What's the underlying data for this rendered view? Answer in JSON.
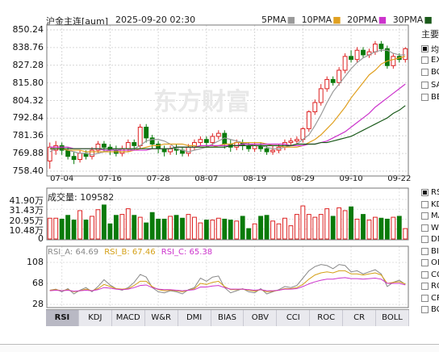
{
  "header": {
    "title": "沪金主连[aum]",
    "datetime": "2025-09-20 02:30",
    "ma_legend": [
      {
        "label": "5PMA",
        "color": "#9a9a9a"
      },
      {
        "label": "10PMA",
        "color": "#e0a020"
      },
      {
        "label": "20PMA",
        "color": "#cc33cc"
      },
      {
        "label": "30PMA",
        "color": "#1a5a1a"
      }
    ]
  },
  "watermark": "东方财富",
  "sidebar": {
    "title": "主要",
    "items": [
      {
        "label": "均",
        "checked": true
      },
      {
        "label": "EX",
        "checked": false
      },
      {
        "label": "BC",
        "checked": false
      },
      {
        "label": "SA",
        "checked": false
      },
      {
        "label": "BE",
        "checked": false
      }
    ],
    "indicator_items": [
      {
        "label": "RS",
        "checked": true
      },
      {
        "label": "KD",
        "checked": false
      },
      {
        "label": "MA",
        "checked": false
      },
      {
        "label": "W8",
        "checked": false
      },
      {
        "label": "DM",
        "checked": false
      },
      {
        "label": "BI",
        "checked": false
      },
      {
        "label": "OB",
        "checked": false
      },
      {
        "label": "CC",
        "checked": false
      },
      {
        "label": "RO",
        "checked": false
      },
      {
        "label": "CR",
        "checked": false
      },
      {
        "label": "BC",
        "checked": false
      }
    ]
  },
  "volume_title": "成交量: 109582",
  "rsi_legend": {
    "a": "RSI_A: 64.69",
    "b": "RSI_B: 67.46",
    "c": "RSI_C: 65.38",
    "a_color": "#888888",
    "b_color": "#d4a017",
    "c_color": "#cc33cc"
  },
  "tabs": [
    "RSI",
    "KDJ",
    "MACD",
    "W&R",
    "DMI",
    "BIAS",
    "OBV",
    "CCI",
    "ROC",
    "CR",
    "BOLL"
  ],
  "active_tab": "RSI",
  "chart_data": [
    {
      "type": "candlestick",
      "y_ticks": [
        "850.24",
        "838.76",
        "827.28",
        "815.80",
        "804.32",
        "792.84",
        "781.36",
        "769.88",
        "758.40"
      ],
      "ylim": [
        758.4,
        850.24
      ],
      "x_ticks": [
        "07-04",
        "07-16",
        "07-28",
        "08-07",
        "08-19",
        "08-29",
        "09-10",
        "09-22"
      ],
      "x_tick_index": [
        2,
        10,
        18,
        26,
        34,
        42,
        50,
        58
      ],
      "candles": [
        [
          765,
          774,
          760,
          777
        ],
        [
          772,
          775,
          769,
          778
        ],
        [
          775,
          772,
          769,
          777
        ],
        [
          772,
          768,
          766,
          774
        ],
        [
          768,
          766,
          763,
          771
        ],
        [
          766,
          770,
          764,
          772
        ],
        [
          770,
          768,
          766,
          772
        ],
        [
          768,
          772,
          766,
          774
        ],
        [
          772,
          776,
          770,
          778
        ],
        [
          776,
          774,
          771,
          778
        ],
        [
          774,
          772,
          769,
          776
        ],
        [
          772,
          770,
          768,
          775
        ],
        [
          770,
          773,
          768,
          775
        ],
        [
          773,
          777,
          771,
          779
        ],
        [
          777,
          775,
          772,
          779
        ],
        [
          775,
          787,
          773,
          789
        ],
        [
          787,
          780,
          777,
          789
        ],
        [
          780,
          776,
          773,
          782
        ],
        [
          776,
          773,
          770,
          778
        ],
        [
          773,
          771,
          768,
          775
        ],
        [
          771,
          773,
          769,
          775
        ],
        [
          773,
          772,
          769,
          776
        ],
        [
          772,
          770,
          768,
          774
        ],
        [
          770,
          774,
          768,
          776
        ],
        [
          774,
          777,
          772,
          779
        ],
        [
          777,
          779,
          775,
          781
        ],
        [
          779,
          777,
          774,
          781
        ],
        [
          777,
          781,
          775,
          783
        ],
        [
          781,
          783,
          779,
          785
        ],
        [
          783,
          776,
          773,
          785
        ],
        [
          776,
          774,
          771,
          779
        ],
        [
          774,
          777,
          772,
          779
        ],
        [
          777,
          775,
          772,
          779
        ],
        [
          775,
          773,
          771,
          777
        ],
        [
          773,
          775,
          771,
          777
        ],
        [
          775,
          773,
          771,
          777
        ],
        [
          773,
          771,
          769,
          775
        ],
        [
          771,
          772,
          769,
          775
        ],
        [
          772,
          774,
          770,
          776
        ],
        [
          774,
          777,
          772,
          779
        ],
        [
          777,
          778,
          775,
          780
        ],
        [
          778,
          779,
          776,
          781
        ],
        [
          779,
          786,
          777,
          787
        ],
        [
          786,
          797,
          784,
          798
        ],
        [
          797,
          803,
          795,
          805
        ],
        [
          803,
          812,
          801,
          815
        ],
        [
          812,
          818,
          810,
          820
        ],
        [
          818,
          816,
          814,
          820
        ],
        [
          816,
          824,
          814,
          826
        ],
        [
          824,
          833,
          822,
          835
        ],
        [
          833,
          831,
          829,
          837
        ],
        [
          831,
          837,
          829,
          839
        ],
        [
          837,
          834,
          832,
          839
        ],
        [
          834,
          836,
          832,
          838
        ],
        [
          836,
          841,
          834,
          843
        ],
        [
          841,
          838,
          836,
          843
        ],
        [
          838,
          827,
          825,
          840
        ],
        [
          827,
          833,
          825,
          835
        ],
        [
          833,
          831,
          829,
          835
        ],
        [
          831,
          838,
          829,
          839
        ]
      ],
      "ma_series": [
        {
          "name": "5PMA",
          "color": "#9a9a9a",
          "values": [
            771,
            773,
            773,
            772,
            771,
            770,
            770,
            769,
            770,
            771,
            772,
            773,
            772,
            772,
            773,
            775,
            778,
            779,
            779,
            778,
            776,
            773,
            772,
            771,
            772,
            773,
            774,
            776,
            778,
            780,
            779,
            778,
            777,
            776,
            775,
            775,
            774,
            773,
            773,
            774,
            775,
            776,
            779,
            782,
            788,
            795,
            803,
            810,
            815,
            820,
            825,
            829,
            832,
            834,
            836,
            837,
            837,
            835,
            834,
            834
          ]
        },
        {
          "name": "10PMA",
          "color": "#e0a020",
          "values": [
            773,
            773,
            773,
            772,
            772,
            772,
            771,
            771,
            771,
            771,
            771,
            771,
            771,
            771,
            772,
            773,
            774,
            775,
            775,
            776,
            776,
            776,
            776,
            775,
            775,
            774,
            774,
            774,
            775,
            776,
            776,
            777,
            777,
            777,
            777,
            777,
            776,
            775,
            775,
            774,
            774,
            774,
            775,
            777,
            779,
            782,
            786,
            790,
            795,
            800,
            806,
            811,
            816,
            821,
            824,
            828,
            830,
            831,
            832,
            833
          ]
        },
        {
          "name": "20PMA",
          "color": "#cc33cc",
          "values": [
            774,
            774,
            774,
            774,
            773,
            773,
            773,
            773,
            773,
            772,
            772,
            772,
            772,
            772,
            772,
            772,
            772,
            773,
            773,
            773,
            773,
            774,
            774,
            774,
            774,
            775,
            775,
            775,
            775,
            775,
            775,
            775,
            776,
            776,
            776,
            776,
            776,
            776,
            776,
            776,
            775,
            775,
            775,
            776,
            776,
            777,
            778,
            780,
            782,
            784,
            787,
            790,
            793,
            796,
            800,
            803,
            806,
            809,
            812,
            815
          ]
        },
        {
          "name": "30PMA",
          "color": "#1a5a1a",
          "values": [
            773,
            773,
            773,
            773,
            773,
            773,
            773,
            773,
            773,
            773,
            773,
            773,
            773,
            773,
            773,
            773,
            773,
            773,
            773,
            773,
            773,
            774,
            774,
            774,
            774,
            774,
            774,
            774,
            774,
            774,
            775,
            775,
            775,
            775,
            775,
            775,
            775,
            775,
            775,
            775,
            775,
            776,
            776,
            776,
            776,
            777,
            777,
            778,
            779,
            780,
            781,
            783,
            785,
            787,
            789,
            791,
            793,
            796,
            798,
            801
          ]
        }
      ]
    },
    {
      "type": "bar",
      "title": "成交量: 109582",
      "y_ticks": [
        "41.90万",
        "31.43万",
        "20.95万",
        "10.48万",
        "0"
      ],
      "ylim": [
        0,
        419000
      ],
      "values": [
        220000,
        220000,
        210000,
        250000,
        200000,
        300000,
        200000,
        240000,
        310000,
        360000,
        160000,
        250000,
        260000,
        320000,
        250000,
        230000,
        170000,
        280000,
        210000,
        210000,
        240000,
        250000,
        220000,
        260000,
        230000,
        170000,
        200000,
        200000,
        220000,
        210000,
        200000,
        190000,
        240000,
        110000,
        160000,
        240000,
        250000,
        190000,
        160000,
        220000,
        140000,
        260000,
        350000,
        260000,
        230000,
        260000,
        320000,
        240000,
        330000,
        300000,
        340000,
        210000,
        260000,
        200000,
        230000,
        220000,
        210000,
        230000,
        240000,
        110000
      ]
    },
    {
      "type": "line",
      "y_ticks": [
        "108",
        "68",
        "28"
      ],
      "ylim": [
        28,
        108
      ],
      "series": [
        {
          "name": "RSI_A",
          "color": "#888888",
          "values": [
            55,
            57,
            52,
            58,
            48,
            55,
            60,
            52,
            62,
            75,
            65,
            58,
            55,
            60,
            70,
            85,
            80,
            60,
            52,
            50,
            54,
            52,
            48,
            56,
            60,
            78,
            72,
            80,
            82,
            60,
            50,
            54,
            58,
            52,
            50,
            58,
            48,
            52,
            56,
            62,
            60,
            64,
            78,
            92,
            100,
            104,
            102,
            96,
            104,
            102,
            90,
            92,
            86,
            90,
            94,
            86,
            62,
            70,
            74,
            66
          ]
        },
        {
          "name": "RSI_B",
          "color": "#d4a017",
          "values": [
            55,
            56,
            54,
            56,
            52,
            54,
            57,
            54,
            58,
            66,
            62,
            58,
            57,
            58,
            64,
            72,
            72,
            62,
            56,
            54,
            55,
            54,
            52,
            55,
            58,
            68,
            66,
            70,
            72,
            62,
            56,
            56,
            57,
            55,
            53,
            56,
            52,
            53,
            55,
            58,
            58,
            60,
            66,
            76,
            84,
            88,
            90,
            88,
            92,
            92,
            86,
            86,
            84,
            86,
            88,
            84,
            68,
            70,
            71,
            67
          ]
        },
        {
          "name": "RSI_C",
          "color": "#cc33cc",
          "values": [
            54,
            55,
            54,
            55,
            53,
            54,
            55,
            54,
            56,
            60,
            59,
            57,
            56,
            57,
            60,
            64,
            65,
            60,
            57,
            56,
            56,
            55,
            54,
            55,
            56,
            61,
            61,
            63,
            64,
            60,
            57,
            57,
            57,
            56,
            55,
            56,
            54,
            54,
            55,
            57,
            57,
            58,
            62,
            67,
            71,
            74,
            76,
            76,
            78,
            79,
            77,
            77,
            76,
            77,
            78,
            76,
            68,
            68,
            68,
            65
          ]
        }
      ]
    }
  ]
}
